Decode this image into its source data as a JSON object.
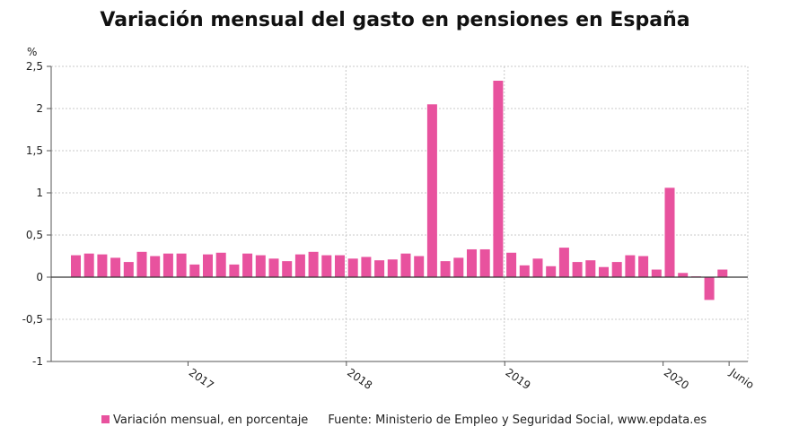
{
  "title": "Variación mensual del gasto en pensiones en España",
  "source": "Fuente: Ministerio de Empleo y Seguridad Social, www.epdata.es",
  "colors": {
    "bar": "#e8529e",
    "grid": "#c8c8c8",
    "zero": "#333333"
  },
  "chart_data": {
    "type": "bar",
    "title": "Variación mensual del gasto en pensiones en España",
    "ylabel": "%",
    "xlabel": "",
    "ylim": [
      -1,
      2.5
    ],
    "yticks": [
      -1,
      -0.5,
      0,
      0.5,
      1,
      1.5,
      2,
      2.5
    ],
    "ytick_labels": [
      "-1",
      "-0,5",
      "0",
      "0,5",
      "1",
      "1,5",
      "2",
      "2,5"
    ],
    "grid": true,
    "legend": "bottom",
    "x_labels": [
      {
        "text": "2017",
        "index": 8.5
      },
      {
        "text": "2018",
        "index": 20.5
      },
      {
        "text": "2019",
        "index": 32.5
      },
      {
        "text": "2020",
        "index": 44.5
      },
      {
        "text": "Junio",
        "index": 49.5
      }
    ],
    "series": [
      {
        "name": "Variación mensual, en porcentaje",
        "values": [
          0.26,
          0.28,
          0.27,
          0.23,
          0.18,
          0.3,
          0.25,
          0.28,
          0.28,
          0.15,
          0.27,
          0.29,
          0.15,
          0.28,
          0.26,
          0.22,
          0.19,
          0.27,
          0.3,
          0.26,
          0.26,
          0.22,
          0.24,
          0.2,
          0.21,
          0.28,
          0.25,
          2.05,
          0.19,
          0.23,
          0.33,
          0.33,
          2.33,
          0.29,
          0.14,
          0.22,
          0.13,
          0.35,
          0.18,
          0.2,
          0.12,
          0.18,
          0.26,
          0.25,
          0.09,
          1.06,
          0.05,
          0.01,
          -0.27,
          0.09
        ]
      }
    ]
  }
}
